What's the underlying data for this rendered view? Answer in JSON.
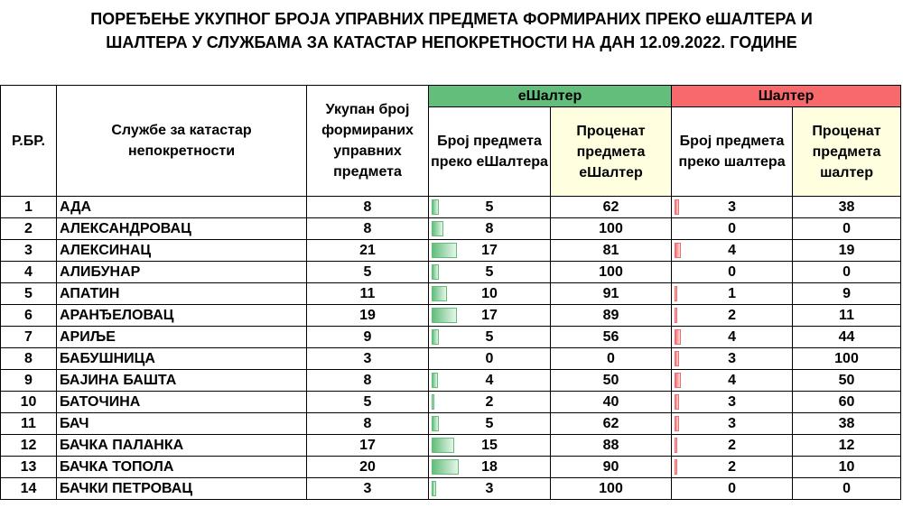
{
  "title": {
    "line1": "ПОРЕЂЕЊЕ УКУПНОГ БРОЈА УПРАВНИХ ПРЕДМЕТА ФОРМИРАНИХ ПРЕКО еШАЛТЕРА И",
    "line2": "ШАЛТЕРА У СЛУЖБАМА ЗА КАТАСТАР НЕПОКРЕТНОСТИ НА ДАН 12.09.2022. ГОДИНЕ"
  },
  "headers": {
    "rbr": "Р.БР.",
    "service": "Службе за катастар непокретности",
    "total": "Укупан број формираних управних предмета",
    "eshalter_group": "еШалтер",
    "shalter_group": "Шалтер",
    "e_count": "Број предмета преко еШалтера",
    "e_percent": "Проценат предмета еШалтер",
    "s_count": "Број предмета преко шалтера",
    "s_percent": "Проценат предмета шалтер"
  },
  "colors": {
    "eshalter_accent": "#63be7b",
    "shalter_accent": "#f8696b",
    "percent_header_bg": "#ffffe0"
  },
  "bar_max": 18,
  "rows": [
    {
      "rbr": "1",
      "name": "АДА",
      "total": "8",
      "e_count": 5,
      "e_pct": "62",
      "s_count": 3,
      "s_pct": "38"
    },
    {
      "rbr": "2",
      "name": "АЛЕКСАНДРОВАЦ",
      "total": "8",
      "e_count": 8,
      "e_pct": "100",
      "s_count": 0,
      "s_pct": "0"
    },
    {
      "rbr": "3",
      "name": "АЛЕКСИНАЦ",
      "total": "21",
      "e_count": 17,
      "e_pct": "81",
      "s_count": 4,
      "s_pct": "19"
    },
    {
      "rbr": "4",
      "name": "АЛИБУНАР",
      "total": "5",
      "e_count": 5,
      "e_pct": "100",
      "s_count": 0,
      "s_pct": "0"
    },
    {
      "rbr": "5",
      "name": "АПАТИН",
      "total": "11",
      "e_count": 10,
      "e_pct": "91",
      "s_count": 1,
      "s_pct": "9"
    },
    {
      "rbr": "6",
      "name": "АРАНЂЕЛОВАЦ",
      "total": "19",
      "e_count": 17,
      "e_pct": "89",
      "s_count": 2,
      "s_pct": "11"
    },
    {
      "rbr": "7",
      "name": "АРИЉЕ",
      "total": "9",
      "e_count": 5,
      "e_pct": "56",
      "s_count": 4,
      "s_pct": "44"
    },
    {
      "rbr": "8",
      "name": "БАБУШНИЦА",
      "total": "3",
      "e_count": 0,
      "e_pct": "0",
      "s_count": 3,
      "s_pct": "100"
    },
    {
      "rbr": "9",
      "name": "БАЈИНА БАШТА",
      "total": "8",
      "e_count": 4,
      "e_pct": "50",
      "s_count": 4,
      "s_pct": "50"
    },
    {
      "rbr": "10",
      "name": "БАТОЧИНА",
      "total": "5",
      "e_count": 2,
      "e_pct": "40",
      "s_count": 3,
      "s_pct": "60"
    },
    {
      "rbr": "11",
      "name": "БАЧ",
      "total": "8",
      "e_count": 5,
      "e_pct": "62",
      "s_count": 3,
      "s_pct": "38"
    },
    {
      "rbr": "12",
      "name": "БАЧКА ПАЛАНКА",
      "total": "17",
      "e_count": 15,
      "e_pct": "88",
      "s_count": 2,
      "s_pct": "12"
    },
    {
      "rbr": "13",
      "name": "БАЧКА ТОПОЛА",
      "total": "20",
      "e_count": 18,
      "e_pct": "90",
      "s_count": 2,
      "s_pct": "10"
    },
    {
      "rbr": "14",
      "name": "БАЧКИ ПЕТРОВАЦ",
      "total": "3",
      "e_count": 3,
      "e_pct": "100",
      "s_count": 0,
      "s_pct": "0"
    }
  ]
}
